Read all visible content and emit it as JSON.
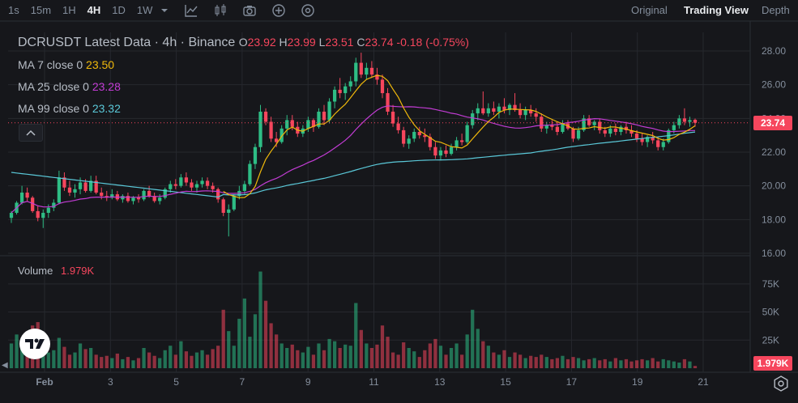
{
  "toolbar": {
    "timeframes": [
      "1s",
      "15m",
      "1H",
      "4H",
      "1D",
      "1W"
    ],
    "active_timeframe": "4H",
    "views": [
      "Original",
      "Trading View",
      "Depth"
    ],
    "active_view": "Trading View",
    "icons": [
      "chevron-down-icon",
      "line-chart-icon",
      "candlestick-icon",
      "camera-icon",
      "plus-circle-icon",
      "settings-circle-icon"
    ]
  },
  "legend": {
    "symbol": "DCRUSDT Latest Data · 4h · Binance",
    "o_label": "O",
    "o_value": "23.92",
    "h_label": "H",
    "h_value": "23.99",
    "l_label": "L",
    "l_value": "23.51",
    "c_label": "C",
    "c_value": "23.74",
    "change": "-0.18",
    "change_pct": "(-0.75%)",
    "ma7_label": "MA 7 close 0",
    "ma7_value": "23.50",
    "ma25_label": "MA 25 close 0",
    "ma25_value": "23.28",
    "ma99_label": "MA 99 close 0",
    "ma99_value": "23.32",
    "volume_label": "Volume",
    "volume_value": "1.979K"
  },
  "colors": {
    "background": "#16171b",
    "grid": "#26282e",
    "up": "#2ebd85",
    "down": "#f6465d",
    "ma7": "#f0b90b",
    "ma25": "#c23cd4",
    "ma99": "#5ac8d8",
    "text": "#b7bdc6",
    "axis_text": "#848e9c"
  },
  "chart_data": {
    "type": "candlestick",
    "price_axis": {
      "ticks": [
        "28.00",
        "26.00",
        "24.00",
        "22.00",
        "20.00",
        "18.00",
        "16.00"
      ],
      "ylim": [
        16,
        28
      ]
    },
    "volume_axis": {
      "ticks": [
        "75K",
        "50K",
        "25K"
      ],
      "ylim": [
        0,
        90000
      ]
    },
    "x_labels": [
      "Feb",
      "3",
      "5",
      "7",
      "9",
      "11",
      "13",
      "15",
      "17",
      "19",
      "21"
    ],
    "last_price": "23.74",
    "last_volume": "1.979K",
    "series_ohlc": [
      [
        18.1,
        18.5,
        17.8,
        18.4
      ],
      [
        18.4,
        19.1,
        18.3,
        19.0
      ],
      [
        19.0,
        20.0,
        18.9,
        19.6
      ],
      [
        19.6,
        19.9,
        19.1,
        19.3
      ],
      [
        19.3,
        19.4,
        18.4,
        18.5
      ],
      [
        18.5,
        18.8,
        17.9,
        18.1
      ],
      [
        18.1,
        18.6,
        17.5,
        18.4
      ],
      [
        18.4,
        18.9,
        18.1,
        18.7
      ],
      [
        18.7,
        19.2,
        18.5,
        19.0
      ],
      [
        19.0,
        20.9,
        18.9,
        20.5
      ],
      [
        20.5,
        20.8,
        19.7,
        19.9
      ],
      [
        19.9,
        20.3,
        19.4,
        19.6
      ],
      [
        19.6,
        20.1,
        19.3,
        19.8
      ],
      [
        19.8,
        20.5,
        19.5,
        20.2
      ],
      [
        20.2,
        20.4,
        19.6,
        19.7
      ],
      [
        19.7,
        20.6,
        19.6,
        20.3
      ],
      [
        20.3,
        20.6,
        19.5,
        19.6
      ],
      [
        19.6,
        19.9,
        19.2,
        19.4
      ],
      [
        19.4,
        19.7,
        19.1,
        19.3
      ],
      [
        19.3,
        19.8,
        19.2,
        19.5
      ],
      [
        19.5,
        19.7,
        19.1,
        19.2
      ],
      [
        19.2,
        19.5,
        19.0,
        19.4
      ],
      [
        19.4,
        19.6,
        19.0,
        19.1
      ],
      [
        19.1,
        19.4,
        18.9,
        19.3
      ],
      [
        19.3,
        19.5,
        19.0,
        19.2
      ],
      [
        19.2,
        19.8,
        19.1,
        19.7
      ],
      [
        19.7,
        20.0,
        19.3,
        19.4
      ],
      [
        19.4,
        19.6,
        19.0,
        19.1
      ],
      [
        19.1,
        19.5,
        18.9,
        19.3
      ],
      [
        19.3,
        19.9,
        19.2,
        19.8
      ],
      [
        19.8,
        20.3,
        19.6,
        20.1
      ],
      [
        20.1,
        20.4,
        19.8,
        20.0
      ],
      [
        20.0,
        20.7,
        19.9,
        20.5
      ],
      [
        20.5,
        20.8,
        20.0,
        20.2
      ],
      [
        20.2,
        20.4,
        19.7,
        19.9
      ],
      [
        19.9,
        20.3,
        19.6,
        20.1
      ],
      [
        20.1,
        20.5,
        19.9,
        20.3
      ],
      [
        20.3,
        20.5,
        19.8,
        20.0
      ],
      [
        20.0,
        20.2,
        19.6,
        19.8
      ],
      [
        19.8,
        19.9,
        19.0,
        19.2
      ],
      [
        19.2,
        19.3,
        18.2,
        18.4
      ],
      [
        18.4,
        18.9,
        17.0,
        18.6
      ],
      [
        18.6,
        19.5,
        18.5,
        19.4
      ],
      [
        19.4,
        20.0,
        19.2,
        19.7
      ],
      [
        19.7,
        20.3,
        19.5,
        20.1
      ],
      [
        20.1,
        21.5,
        20.0,
        21.3
      ],
      [
        21.3,
        22.5,
        21.0,
        22.3
      ],
      [
        22.3,
        24.8,
        22.0,
        24.4
      ],
      [
        24.4,
        24.6,
        23.6,
        23.8
      ],
      [
        23.8,
        24.1,
        22.6,
        22.8
      ],
      [
        22.8,
        23.2,
        22.3,
        22.6
      ],
      [
        22.6,
        23.6,
        22.5,
        23.4
      ],
      [
        23.4,
        24.2,
        23.0,
        23.9
      ],
      [
        23.9,
        24.2,
        23.3,
        23.5
      ],
      [
        23.5,
        23.8,
        22.9,
        23.1
      ],
      [
        23.1,
        23.6,
        22.9,
        23.4
      ],
      [
        23.4,
        24.1,
        23.2,
        23.9
      ],
      [
        23.9,
        24.0,
        23.2,
        23.5
      ],
      [
        23.5,
        24.6,
        23.4,
        24.4
      ],
      [
        24.4,
        24.8,
        23.6,
        23.9
      ],
      [
        23.9,
        25.2,
        23.7,
        25.0
      ],
      [
        25.0,
        25.9,
        24.6,
        25.7
      ],
      [
        25.7,
        26.4,
        25.2,
        25.5
      ],
      [
        25.5,
        26.1,
        25.1,
        25.9
      ],
      [
        25.9,
        26.5,
        25.6,
        26.2
      ],
      [
        26.2,
        27.6,
        25.9,
        27.3
      ],
      [
        27.3,
        27.9,
        26.4,
        26.6
      ],
      [
        26.6,
        27.3,
        26.3,
        27.0
      ],
      [
        27.0,
        27.4,
        26.4,
        26.6
      ],
      [
        26.6,
        27.0,
        26.0,
        26.3
      ],
      [
        26.3,
        26.6,
        25.2,
        25.5
      ],
      [
        25.5,
        25.8,
        24.2,
        24.4
      ],
      [
        24.4,
        24.8,
        23.5,
        23.7
      ],
      [
        23.7,
        24.1,
        23.1,
        23.3
      ],
      [
        23.3,
        23.5,
        22.3,
        22.5
      ],
      [
        22.5,
        23.0,
        22.2,
        22.8
      ],
      [
        22.8,
        23.4,
        22.6,
        23.2
      ],
      [
        23.2,
        23.5,
        22.8,
        23.0
      ],
      [
        23.0,
        23.4,
        22.6,
        22.9
      ],
      [
        22.9,
        23.1,
        22.1,
        22.3
      ],
      [
        22.3,
        22.6,
        21.6,
        21.8
      ],
      [
        21.8,
        22.3,
        21.5,
        22.1
      ],
      [
        22.1,
        22.4,
        21.7,
        21.9
      ],
      [
        21.9,
        22.5,
        21.8,
        22.3
      ],
      [
        22.3,
        22.9,
        22.1,
        22.7
      ],
      [
        22.7,
        23.1,
        22.4,
        22.6
      ],
      [
        22.6,
        23.8,
        22.5,
        23.6
      ],
      [
        23.6,
        24.5,
        23.4,
        24.3
      ],
      [
        24.3,
        24.9,
        23.9,
        24.6
      ],
      [
        24.6,
        25.6,
        24.2,
        24.3
      ],
      [
        24.3,
        24.9,
        24.1,
        24.6
      ],
      [
        24.6,
        25.0,
        24.2,
        24.4
      ],
      [
        24.4,
        24.9,
        24.0,
        24.7
      ],
      [
        24.7,
        25.2,
        24.3,
        24.5
      ],
      [
        24.5,
        24.9,
        24.2,
        24.8
      ],
      [
        24.8,
        25.5,
        24.4,
        24.5
      ],
      [
        24.5,
        24.9,
        24.0,
        24.2
      ],
      [
        24.2,
        24.7,
        23.9,
        24.5
      ],
      [
        24.5,
        24.8,
        24.1,
        24.3
      ],
      [
        24.3,
        24.6,
        23.8,
        24.1
      ],
      [
        24.1,
        24.3,
        23.2,
        23.4
      ],
      [
        23.4,
        23.8,
        23.1,
        23.6
      ],
      [
        23.6,
        23.9,
        23.3,
        23.5
      ],
      [
        23.5,
        23.8,
        23.0,
        23.2
      ],
      [
        23.2,
        23.9,
        23.1,
        23.7
      ],
      [
        23.7,
        23.9,
        23.3,
        23.4
      ],
      [
        23.4,
        23.5,
        22.6,
        22.8
      ],
      [
        22.8,
        23.5,
        22.7,
        23.3
      ],
      [
        23.3,
        24.2,
        23.2,
        24.0
      ],
      [
        24.0,
        24.2,
        23.5,
        23.6
      ],
      [
        23.6,
        23.9,
        23.3,
        23.8
      ],
      [
        23.8,
        24.0,
        23.1,
        23.3
      ],
      [
        23.3,
        23.5,
        22.9,
        23.1
      ],
      [
        23.1,
        23.6,
        22.9,
        23.4
      ],
      [
        23.4,
        23.7,
        23.0,
        23.2
      ],
      [
        23.2,
        23.6,
        23.0,
        23.5
      ],
      [
        23.5,
        23.8,
        23.1,
        23.3
      ],
      [
        23.3,
        23.6,
        22.9,
        23.1
      ],
      [
        23.1,
        23.3,
        22.6,
        22.8
      ],
      [
        22.8,
        23.1,
        22.4,
        22.6
      ],
      [
        22.6,
        23.0,
        22.3,
        22.9
      ],
      [
        22.9,
        23.2,
        22.5,
        22.7
      ],
      [
        22.7,
        22.9,
        22.1,
        22.3
      ],
      [
        22.3,
        22.8,
        22.1,
        22.6
      ],
      [
        22.6,
        23.4,
        22.5,
        23.3
      ],
      [
        23.3,
        23.8,
        23.1,
        23.6
      ],
      [
        23.6,
        24.2,
        23.4,
        24.0
      ],
      [
        24.0,
        24.6,
        23.6,
        23.8
      ],
      [
        23.8,
        24.1,
        23.5,
        23.9
      ],
      [
        23.92,
        23.99,
        23.51,
        23.74
      ]
    ],
    "volume": [
      22,
      30,
      26,
      12,
      38,
      41,
      20,
      14,
      16,
      27,
      19,
      12,
      14,
      22,
      17,
      18,
      12,
      10,
      11,
      9,
      13,
      8,
      10,
      7,
      9,
      18,
      14,
      11,
      9,
      16,
      20,
      12,
      24,
      15,
      11,
      14,
      16,
      12,
      17,
      20,
      52,
      33,
      20,
      44,
      62,
      28,
      48,
      86,
      60,
      40,
      30,
      22,
      18,
      21,
      16,
      14,
      19,
      12,
      22,
      16,
      26,
      24,
      18,
      21,
      20,
      58,
      34,
      22,
      18,
      21,
      38,
      28,
      14,
      12,
      23,
      18,
      15,
      10,
      16,
      22,
      26,
      20,
      12,
      18,
      22,
      12,
      30,
      52,
      35,
      24,
      20,
      14,
      12,
      16,
      10,
      14,
      12,
      9,
      11,
      10,
      12,
      10,
      8,
      9,
      11,
      8,
      10,
      9,
      7,
      8,
      9,
      7,
      8,
      6,
      9,
      7,
      8,
      6,
      7,
      8,
      7,
      9,
      6,
      8,
      7,
      6,
      5,
      8,
      6,
      2
    ],
    "ma7_last": 23.5,
    "ma25_last": 23.28,
    "ma99_last": 23.32
  }
}
